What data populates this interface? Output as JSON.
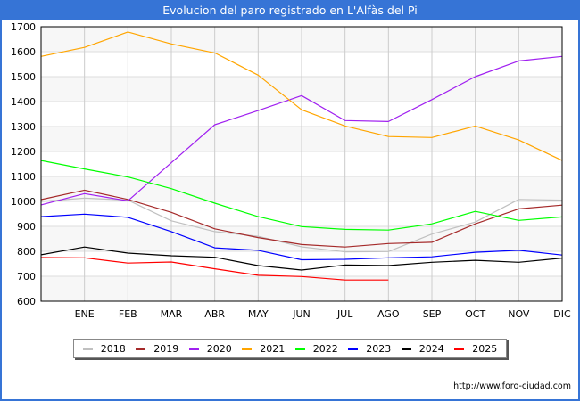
{
  "header": {
    "title": "Evolucion del paro registrado en L'Alfàs del Pi"
  },
  "footer": {
    "url": "http://www.foro-ciudad.com"
  },
  "chart_data": {
    "type": "line",
    "title": "Evolucion del paro registrado en L'Alfàs del Pi",
    "xlabel": "",
    "ylabel": "",
    "x": [
      "",
      "ENE",
      "FEB",
      "MAR",
      "ABR",
      "MAY",
      "JUN",
      "JUL",
      "AGO",
      "SEP",
      "OCT",
      "NOV",
      "DIC"
    ],
    "x_tick_labels": [
      "ENE",
      "FEB",
      "MAR",
      "ABR",
      "MAY",
      "JUN",
      "JUL",
      "AGO",
      "SEP",
      "OCT",
      "NOV",
      "DIC"
    ],
    "ylim": [
      600,
      1700
    ],
    "y_ticks": [
      600,
      700,
      800,
      900,
      1000,
      1100,
      1200,
      1300,
      1400,
      1500,
      1600,
      1700
    ],
    "grid": true,
    "legend_position": "bottom",
    "series": [
      {
        "name": "2018",
        "color": "#c0c0c0",
        "values": [
          1000,
          1013,
          1005,
          922,
          879,
          860,
          818,
          798,
          799,
          869,
          917,
          1008,
          1005
        ]
      },
      {
        "name": "2019",
        "color": "#a52a2a",
        "values": [
          1007,
          1045,
          1008,
          956,
          890,
          855,
          827,
          817,
          831,
          836,
          910,
          970,
          985
        ]
      },
      {
        "name": "2020",
        "color": "#a020f0",
        "values": [
          986,
          1031,
          1002,
          1155,
          1307,
          1364,
          1424,
          1324,
          1320,
          1408,
          1500,
          1563,
          1581
        ]
      },
      {
        "name": "2021",
        "color": "#ffa500",
        "values": [
          1581,
          1617,
          1679,
          1631,
          1595,
          1506,
          1367,
          1302,
          1260,
          1256,
          1302,
          1246,
          1164
        ]
      },
      {
        "name": "2022",
        "color": "#00ff00",
        "values": [
          1164,
          1130,
          1098,
          1051,
          993,
          939,
          899,
          888,
          885,
          910,
          960,
          924,
          938
        ]
      },
      {
        "name": "2023",
        "color": "#0000ff",
        "values": [
          939,
          949,
          936,
          879,
          814,
          804,
          766,
          768,
          774,
          778,
          796,
          804,
          785
        ]
      },
      {
        "name": "2024",
        "color": "#000000",
        "values": [
          786,
          817,
          793,
          782,
          776,
          743,
          725,
          745,
          743,
          756,
          764,
          756,
          773
        ]
      },
      {
        "name": "2025",
        "color": "#ff0000",
        "values": [
          775,
          774,
          753,
          757,
          730,
          704,
          699,
          685,
          685
        ]
      }
    ]
  }
}
